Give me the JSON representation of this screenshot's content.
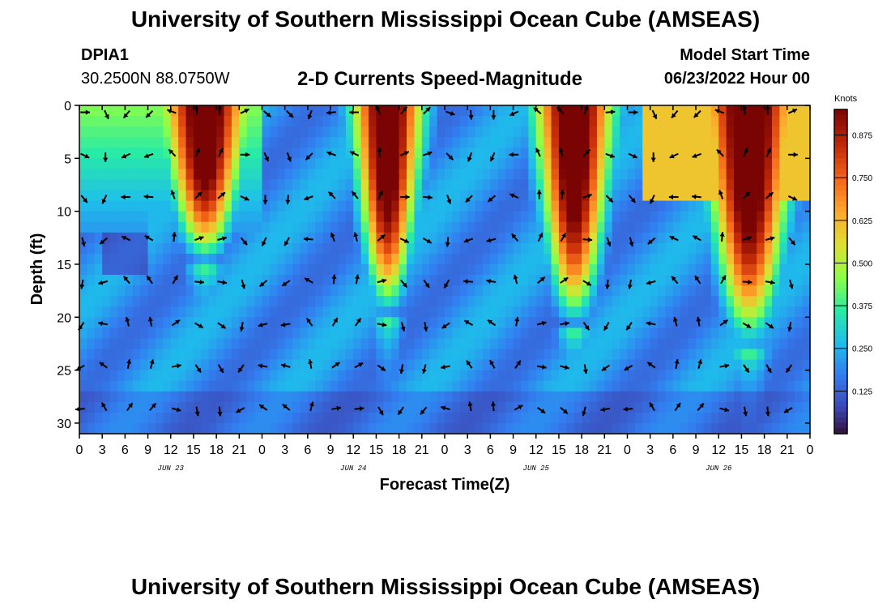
{
  "header": {
    "title": "University of Southern Mississippi Ocean Cube (AMSEAS)",
    "station_id": "DPIA1",
    "coords": "30.2500N  88.0750W",
    "chart_title": "2-D Currents Speed-Magnitude",
    "model_start_label": "Model Start Time",
    "model_start_value": "06/23/2022 Hour 00"
  },
  "footer": {
    "title": "University of Southern Mississippi Ocean Cube (AMSEAS)"
  },
  "chart_data": {
    "type": "heatmap",
    "title": "2-D Currents Speed-Magnitude",
    "xlabel": "Forecast Time(Z)",
    "ylabel": "Depth (ft)",
    "xlim": [
      0,
      96
    ],
    "ylim": [
      0,
      31
    ],
    "x_ticks": [
      0,
      3,
      6,
      9,
      12,
      15,
      18,
      21,
      24,
      27,
      30,
      33,
      36,
      39,
      42,
      45,
      48,
      51,
      54,
      57,
      60,
      63,
      66,
      69,
      72,
      75,
      78,
      81,
      84,
      87,
      90,
      93,
      96
    ],
    "x_tick_labels": [
      "0",
      "3",
      "6",
      "9",
      "12",
      "15",
      "18",
      "21",
      "0",
      "3",
      "6",
      "9",
      "12",
      "15",
      "18",
      "21",
      "0",
      "3",
      "6",
      "9",
      "12",
      "15",
      "18",
      "21",
      "0",
      "3",
      "6",
      "9",
      "12",
      "15",
      "18",
      "21",
      "0"
    ],
    "day_labels": [
      {
        "hour": 12,
        "text": "JUN 23"
      },
      {
        "hour": 36,
        "text": "JUN 24"
      },
      {
        "hour": 60,
        "text": "JUN 25"
      },
      {
        "hour": 84,
        "text": "JUN 26"
      }
    ],
    "y_ticks": [
      0,
      5,
      10,
      15,
      20,
      25,
      30
    ],
    "colorbar": {
      "label": "Knots",
      "range": [
        0,
        0.95
      ],
      "ticks": [
        0.125,
        0.25,
        0.375,
        0.5,
        0.625,
        0.75,
        0.875
      ],
      "tick_labels": [
        "0.125",
        "0.250",
        "0.375",
        "0.500",
        "0.625",
        "0.750",
        "0.875"
      ]
    },
    "arrow_depths": [
      0.5,
      4.5,
      8.5,
      12.5,
      16.5,
      20.5,
      24.5,
      28.5
    ],
    "arrow_hours": [
      0,
      3,
      6,
      9,
      12,
      15,
      18,
      21,
      24,
      27,
      30,
      33,
      36,
      39,
      42,
      45,
      48,
      51,
      54,
      57,
      60,
      63,
      66,
      69,
      72,
      75,
      78,
      81,
      84,
      87,
      90,
      93
    ],
    "speed_model": {
      "description": "approximate speed (knots) by depth, sampled at 3-hour steps",
      "surface_peaks": [
        {
          "center": 16.5,
          "width": 5.5,
          "depth_extent": 15,
          "peak": 0.92
        },
        {
          "center": 40.5,
          "width": 4.5,
          "depth_extent": 20,
          "peak": 0.93
        },
        {
          "center": 65.0,
          "width": 5.0,
          "depth_extent": 21,
          "peak": 0.94
        },
        {
          "center": 88.0,
          "width": 6.0,
          "depth_extent": 23,
          "peak": 0.95
        }
      ],
      "background": 0.2
    }
  }
}
